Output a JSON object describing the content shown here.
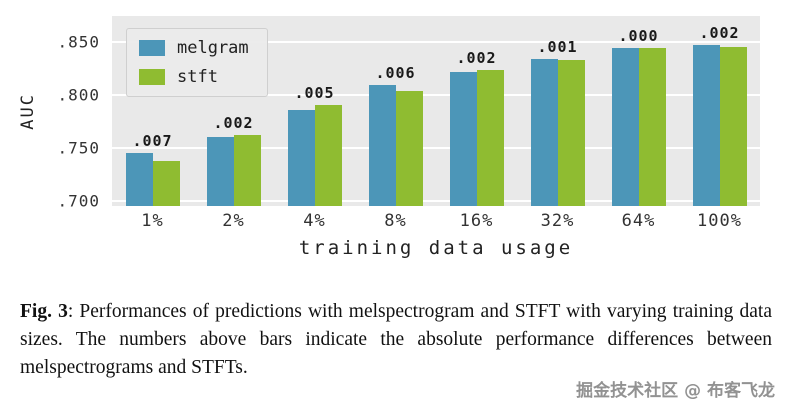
{
  "figure": {
    "caption_label": "Fig. 3",
    "caption_text": ": Performances of predictions with melspectrogram and STFT with varying training data sizes. The numbers above bars indicate the absolute performance differences between melspectrograms and STFTs."
  },
  "watermark": "掘金技术社区 @ 布客飞龙",
  "chart_data": {
    "type": "bar",
    "title": "",
    "xlabel": "training data usage",
    "ylabel": "AUC",
    "categories": [
      "1%",
      "2%",
      "4%",
      "8%",
      "16%",
      "32%",
      "64%",
      "100%"
    ],
    "series": [
      {
        "name": "melgram",
        "color": "#4c96b8",
        "values": [
          0.745,
          0.76,
          0.786,
          0.81,
          0.822,
          0.834,
          0.845,
          0.848
        ]
      },
      {
        "name": "stft",
        "color": "#8fbc31",
        "values": [
          0.738,
          0.762,
          0.791,
          0.804,
          0.824,
          0.833,
          0.845,
          0.846
        ]
      }
    ],
    "annotations": [
      ".007",
      ".002",
      ".005",
      ".006",
      ".002",
      ".001",
      ".000",
      ".002"
    ],
    "yticks": [
      0.7,
      0.75,
      0.8,
      0.85
    ],
    "ytick_labels": [
      ".700",
      ".750",
      ".800",
      ".850"
    ],
    "ylim": [
      0.695,
      0.875
    ],
    "grid": true,
    "legend_position": "upper-left",
    "plot_background": "#e9e9e9"
  }
}
